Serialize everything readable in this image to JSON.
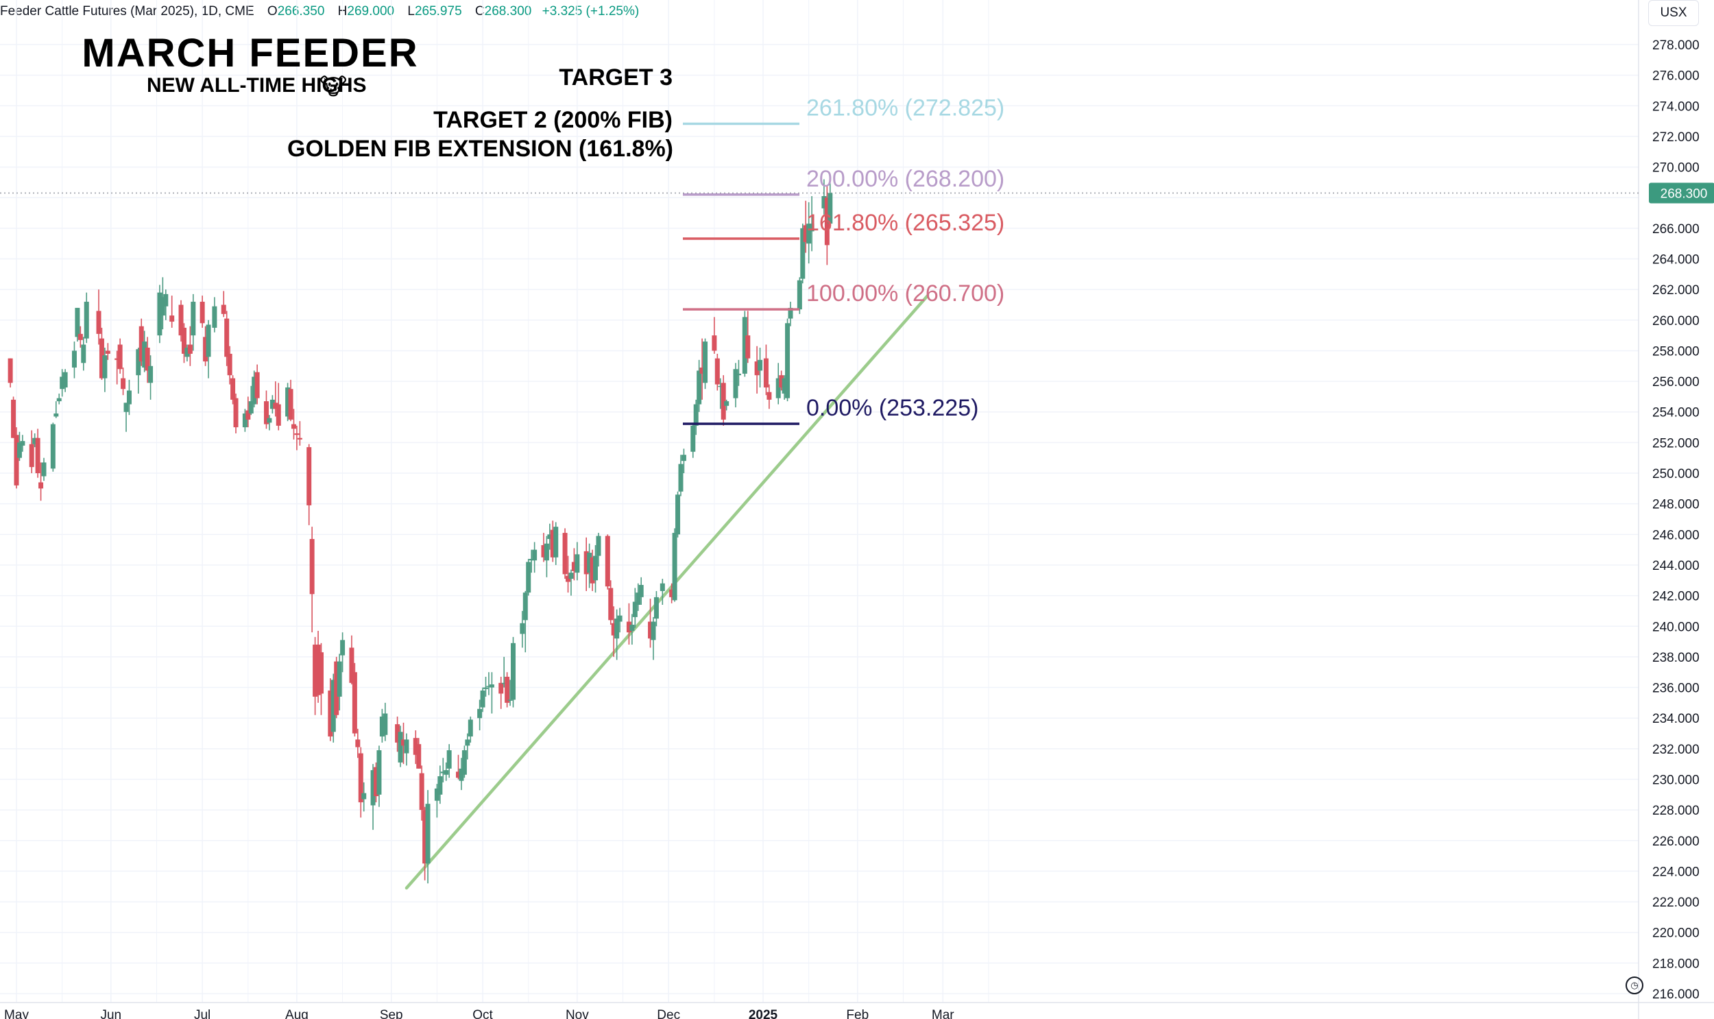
{
  "header": {
    "symbol": "Feeder Cattle Futures (Mar 2025), 1D, CME",
    "open_label": "O",
    "open": "266.350",
    "high_label": "H",
    "high": "269.000",
    "low_label": "L",
    "low": "265.975",
    "close_label": "C",
    "close": "268.300",
    "change": "+3.325 (+1.25%)"
  },
  "currency": "USX",
  "annotations": {
    "title": "MARCH FEEDER",
    "subtitle": "NEW ALL-TIME HIGHS",
    "emoji": "🐮",
    "target3": "TARGET 3",
    "target2": "TARGET 2 (200% FIB)",
    "golden": "GOLDEN FIB EXTENSION (161.8%)"
  },
  "chart_data": {
    "type": "candlestick",
    "y_axis": {
      "ylim": [
        215.5,
        279.5
      ],
      "ticks": [
        "216.000",
        "218.000",
        "220.000",
        "222.000",
        "224.000",
        "226.000",
        "228.000",
        "230.000",
        "232.000",
        "234.000",
        "236.000",
        "238.000",
        "240.000",
        "242.000",
        "244.000",
        "246.000",
        "248.000",
        "250.000",
        "252.000",
        "254.000",
        "256.000",
        "258.000",
        "260.000",
        "262.000",
        "264.000",
        "266.000",
        "268.000",
        "270.000",
        "272.000",
        "274.000",
        "276.000",
        "278.000"
      ],
      "last_price_label": "268.300",
      "last_price": 268.3
    },
    "x_axis": {
      "ticks": [
        "May",
        "Jun",
        "Jul",
        "Aug",
        "Sep",
        "Oct",
        "Nov",
        "Dec",
        "2025",
        "Feb",
        "Mar"
      ]
    },
    "fib_levels": [
      {
        "label": "261.80% (272.825)",
        "value": 272.825,
        "color": "#a7d8e3"
      },
      {
        "label": "200.00% (268.200)",
        "value": 268.2,
        "color": "#b89cc9"
      },
      {
        "label": "161.80% (265.325)",
        "value": 265.325,
        "color": "#d95b62"
      },
      {
        "label": "100.00% (260.700)",
        "value": 260.7,
        "color": "#cf6f86"
      },
      {
        "label": "0.00% (253.225)",
        "value": 253.225,
        "color": "#1f1a63"
      }
    ],
    "trendline": {
      "start": {
        "date": "Sep 06",
        "value": 222.9
      },
      "end": {
        "date": "Feb 24",
        "value": 261.6
      },
      "color": "#9ccc8c"
    },
    "colors": {
      "up": "#4e9b83",
      "down": "#d9525e",
      "grid": "#f0f3fa",
      "dotted": "#9598a1",
      "price_tag": "#3c9a7f"
    },
    "candles": [
      [
        "Apr 29",
        257.5,
        257.5,
        255.6,
        255.9
      ],
      [
        "Apr 30",
        254.8,
        255.0,
        252.3,
        252.3
      ],
      [
        "May 01",
        252.5,
        253.0,
        249.0,
        249.2
      ],
      [
        "May 02",
        251.0,
        252.7,
        250.8,
        252.0
      ],
      [
        "May 03",
        251.8,
        252.5,
        251.4,
        252.1
      ],
      [
        "May 06",
        251.9,
        252.8,
        250.0,
        250.4
      ],
      [
        "May 07",
        251.9,
        252.6,
        251.7,
        252.3
      ],
      [
        "May 08",
        252.3,
        252.9,
        249.7,
        250.0
      ],
      [
        "May 09",
        249.4,
        250.7,
        248.2,
        249.0
      ],
      [
        "May 10",
        249.8,
        251.0,
        249.5,
        250.7
      ],
      [
        "May 13",
        250.3,
        253.3,
        250.1,
        253.2
      ],
      [
        "May 14",
        253.7,
        254.7,
        253.6,
        253.9
      ],
      [
        "May 15",
        254.7,
        255.2,
        254.5,
        254.9
      ],
      [
        "May 16",
        255.5,
        256.8,
        255.0,
        256.3
      ],
      [
        "May 17",
        255.6,
        256.8,
        255.3,
        256.6
      ],
      [
        "May 20",
        256.9,
        258.6,
        256.2,
        258.0
      ],
      [
        "May 21",
        258.9,
        260.8,
        258.6,
        260.8
      ],
      [
        "May 22",
        259.1,
        259.6,
        258.2,
        258.7
      ],
      [
        "May 23",
        257.2,
        258.9,
        256.7,
        258.4
      ],
      [
        "May 24",
        258.8,
        261.8,
        258.5,
        261.2
      ],
      [
        "May 28",
        260.6,
        262.0,
        258.4,
        259.1
      ],
      [
        "May 29",
        258.8,
        259.5,
        256.1,
        256.2
      ],
      [
        "May 30",
        256.2,
        258.2,
        255.3,
        257.7
      ],
      [
        "May 31",
        258.0,
        258.5,
        257.4,
        257.8
      ],
      [
        "Jun 03",
        257.5,
        258.0,
        255.8,
        257.4
      ],
      [
        "Jun 04",
        258.4,
        258.8,
        256.5,
        256.8
      ],
      [
        "Jun 05",
        256.2,
        256.9,
        255.1,
        255.5
      ],
      [
        "Jun 06",
        254.0,
        254.6,
        252.7,
        254.6
      ],
      [
        "Jun 07",
        254.5,
        256.1,
        253.8,
        255.4
      ],
      [
        "Jun 10",
        256.4,
        258.2,
        255.2,
        258.1
      ],
      [
        "Jun 11",
        259.6,
        260.1,
        257.0,
        257.3
      ],
      [
        "Jun 12",
        256.9,
        259.3,
        256.6,
        258.6
      ],
      [
        "Jun 13",
        258.2,
        258.9,
        255.9,
        256.7
      ],
      [
        "Jun 14",
        255.9,
        257.7,
        254.8,
        257.0
      ],
      [
        "Jun 17",
        259.0,
        262.3,
        258.5,
        261.8
      ],
      [
        "Jun 18",
        260.3,
        262.8,
        259.4,
        261.5
      ],
      [
        "Jun 19",
        260.9,
        262.0,
        260.0,
        261.7
      ],
      [
        "Jun 21",
        260.3,
        261.6,
        259.5,
        259.9
      ],
      [
        "Jun 24",
        261.0,
        261.3,
        258.6,
        259.0
      ],
      [
        "Jun 25",
        259.5,
        259.8,
        257.2,
        257.8
      ],
      [
        "Jun 26",
        257.6,
        258.4,
        257.3,
        258.2
      ],
      [
        "Jun 27",
        258.4,
        259.6,
        257.0,
        257.8
      ],
      [
        "Jun 28",
        259.0,
        261.7,
        258.0,
        261.2
      ],
      [
        "Jul 01",
        261.2,
        261.6,
        259.5,
        259.8
      ],
      [
        "Jul 02",
        258.9,
        259.6,
        257.0,
        257.3
      ],
      [
        "Jul 03",
        257.6,
        260.0,
        256.2,
        259.7
      ],
      [
        "Jul 05",
        259.5,
        261.5,
        259.2,
        260.9
      ],
      [
        "Jul 08",
        261.0,
        261.9,
        260.2,
        260.4
      ],
      [
        "Jul 09",
        260.1,
        260.6,
        257.0,
        257.6
      ],
      [
        "Jul 10",
        257.8,
        258.3,
        255.8,
        256.4
      ],
      [
        "Jul 11",
        256.2,
        256.4,
        254.5,
        254.8
      ],
      [
        "Jul 12",
        254.9,
        255.2,
        252.6,
        253.0
      ],
      [
        "Jul 15",
        253.0,
        254.2,
        252.7,
        253.9
      ],
      [
        "Jul 16",
        254.1,
        255.0,
        253.0,
        253.5
      ],
      [
        "Jul 17",
        253.9,
        255.7,
        253.8,
        254.7
      ],
      [
        "Jul 18",
        254.5,
        256.7,
        254.3,
        256.3
      ],
      [
        "Jul 19",
        256.6,
        257.1,
        254.5,
        254.9
      ],
      [
        "Jul 22",
        254.7,
        255.4,
        252.9,
        253.2
      ],
      [
        "Jul 23",
        253.3,
        253.8,
        252.8,
        253.6
      ],
      [
        "Jul 24",
        254.2,
        255.1,
        253.9,
        254.8
      ],
      [
        "Jul 25",
        254.6,
        256.0,
        253.7,
        254.2
      ],
      [
        "Jul 26",
        254.5,
        255.9,
        252.8,
        253.1
      ],
      [
        "Jul 29",
        253.7,
        255.9,
        253.4,
        255.6
      ],
      [
        "Jul 30",
        255.5,
        256.1,
        253.4,
        253.5
      ],
      [
        "Jul 31",
        253.2,
        254.2,
        252.2,
        252.9
      ],
      [
        "Aug 01",
        252.6,
        253.1,
        251.5,
        252.5
      ],
      [
        "Aug 02",
        252.3,
        253.4,
        251.8,
        252.2
      ],
      [
        "Aug 05",
        251.7,
        251.9,
        246.6,
        247.9
      ],
      [
        "Aug 06",
        245.7,
        246.5,
        239.6,
        242.1
      ],
      [
        "Aug 07",
        238.8,
        239.3,
        234.2,
        235.4
      ],
      [
        "Aug 08",
        238.8,
        239.7,
        235.0,
        235.5
      ],
      [
        "Aug 09",
        238.3,
        238.9,
        234.2,
        235.6
      ],
      [
        "Aug 12",
        235.8,
        236.6,
        232.5,
        232.8
      ],
      [
        "Aug 13",
        233.1,
        236.9,
        232.4,
        236.5
      ],
      [
        "Aug 14",
        237.7,
        238.0,
        234.0,
        234.2
      ],
      [
        "Aug 15",
        235.4,
        238.2,
        234.5,
        237.7
      ],
      [
        "Aug 16",
        238.1,
        239.6,
        237.0,
        239.1
      ],
      [
        "Aug 19",
        238.6,
        239.4,
        236.2,
        236.3
      ],
      [
        "Aug 20",
        237.0,
        237.6,
        232.8,
        233.0
      ],
      [
        "Aug 21",
        232.6,
        233.3,
        231.4,
        232.1
      ],
      [
        "Aug 22",
        231.7,
        232.1,
        227.5,
        228.5
      ],
      [
        "Aug 23",
        228.7,
        229.8,
        227.9,
        229.1
      ],
      [
        "Aug 26",
        228.3,
        231.0,
        226.7,
        230.6
      ],
      [
        "Aug 27",
        230.8,
        231.1,
        228.5,
        228.9
      ],
      [
        "Aug 28",
        229.0,
        232.2,
        228.2,
        231.9
      ],
      [
        "Aug 29",
        232.8,
        234.6,
        232.4,
        234.1
      ],
      [
        "Aug 30",
        232.9,
        235.0,
        232.5,
        234.3
      ],
      [
        "Sep 03",
        233.6,
        234.1,
        231.8,
        232.4
      ],
      [
        "Sep 04",
        231.1,
        233.5,
        230.8,
        233.1
      ],
      [
        "Sep 05",
        232.6,
        233.7,
        231.0,
        232.2
      ],
      [
        "Sep 06",
        231.7,
        233.0,
        230.9,
        232.6
      ],
      [
        "Sep 09",
        232.7,
        233.2,
        231.0,
        231.6
      ],
      [
        "Sep 10",
        232.3,
        232.7,
        230.7,
        230.7
      ],
      [
        "Sep 11",
        230.4,
        230.9,
        227.3,
        228.0
      ],
      [
        "Sep 12",
        228.0,
        228.2,
        223.4,
        224.5
      ],
      [
        "Sep 13",
        224.5,
        229.3,
        223.2,
        228.4
      ],
      [
        "Sep 16",
        228.6,
        229.7,
        227.5,
        229.4
      ],
      [
        "Sep 17",
        229.0,
        230.9,
        228.4,
        230.2
      ],
      [
        "Sep 18",
        230.4,
        231.4,
        229.8,
        230.5
      ],
      [
        "Sep 19",
        230.3,
        231.1,
        229.9,
        230.6
      ],
      [
        "Sep 20",
        230.7,
        232.3,
        230.1,
        231.9
      ],
      [
        "Sep 23",
        230.5,
        231.6,
        230.0,
        230.1
      ],
      [
        "Sep 24",
        229.9,
        231.4,
        229.3,
        230.7
      ],
      [
        "Sep 25",
        230.3,
        232.2,
        230.1,
        231.9
      ],
      [
        "Sep 26",
        232.2,
        233.0,
        231.3,
        232.6
      ],
      [
        "Sep 27",
        232.8,
        234.1,
        232.4,
        233.9
      ],
      [
        "Sep 30",
        234.0,
        235.2,
        233.2,
        234.6
      ],
      [
        "Oct 01",
        234.7,
        236.0,
        234.4,
        235.8
      ],
      [
        "Oct 02",
        235.9,
        236.7,
        235.4,
        236.0
      ],
      [
        "Oct 03",
        236.1,
        237.0,
        235.5,
        236.1
      ],
      [
        "Oct 04",
        236.0,
        237.0,
        234.3,
        236.2
      ],
      [
        "Oct 07",
        236.3,
        236.7,
        234.6,
        235.6
      ],
      [
        "Oct 08",
        236.3,
        238.0,
        236.0,
        236.3
      ],
      [
        "Oct 09",
        236.7,
        237.0,
        234.7,
        235.0
      ],
      [
        "Oct 10",
        235.2,
        236.5,
        234.8,
        235.2
      ],
      [
        "Oct 11",
        235.2,
        239.3,
        234.7,
        238.9
      ],
      [
        "Oct 14",
        239.5,
        241.0,
        238.6,
        240.2
      ],
      [
        "Oct 15",
        240.4,
        242.3,
        238.3,
        242.2
      ],
      [
        "Oct 16",
        242.2,
        244.4,
        242.0,
        244.2
      ],
      [
        "Oct 17",
        244.3,
        245.0,
        243.5,
        244.4
      ],
      [
        "Oct 18",
        244.3,
        245.5,
        243.5,
        245.0
      ],
      [
        "Oct 21",
        245.3,
        246.1,
        244.2,
        244.5
      ],
      [
        "Oct 22",
        244.3,
        245.9,
        243.2,
        245.4
      ],
      [
        "Oct 23",
        245.7,
        246.7,
        245.0,
        246.0
      ],
      [
        "Oct 24",
        246.3,
        246.9,
        244.2,
        244.5
      ],
      [
        "Oct 25",
        244.5,
        246.8,
        244.0,
        246.5
      ],
      [
        "Oct 28",
        246.1,
        246.4,
        243.1,
        243.4
      ],
      [
        "Oct 29",
        243.3,
        244.6,
        242.2,
        242.9
      ],
      [
        "Oct 30",
        243.1,
        243.7,
        242.0,
        243.5
      ],
      [
        "Oct 31",
        244.2,
        245.1,
        243.0,
        243.6
      ],
      [
        "Nov 01",
        243.5,
        245.5,
        243.0,
        244.7
      ],
      [
        "Nov 04",
        244.9,
        245.8,
        242.3,
        243.4
      ],
      [
        "Nov 05",
        243.5,
        245.4,
        242.5,
        244.8
      ],
      [
        "Nov 06",
        244.5,
        245.0,
        242.3,
        242.8
      ],
      [
        "Nov 07",
        243.0,
        245.3,
        242.2,
        244.6
      ],
      [
        "Nov 08",
        244.6,
        246.1,
        243.9,
        245.9
      ],
      [
        "Nov 11",
        245.9,
        246.0,
        242.4,
        242.6
      ],
      [
        "Nov 12",
        242.5,
        243.0,
        240.1,
        240.4
      ],
      [
        "Nov 13",
        240.2,
        241.3,
        238.0,
        239.4
      ],
      [
        "Nov 14",
        239.2,
        241.1,
        237.8,
        240.5
      ],
      [
        "Nov 15",
        240.3,
        241.2,
        239.6,
        240.7
      ],
      [
        "Nov 18",
        240.3,
        241.5,
        238.8,
        239.6
      ],
      [
        "Nov 19",
        239.7,
        240.8,
        238.8,
        240.1
      ],
      [
        "Nov 20",
        240.6,
        242.5,
        239.9,
        241.6
      ],
      [
        "Nov 21",
        241.4,
        242.8,
        241.0,
        242.2
      ],
      [
        "Nov 22",
        241.9,
        243.2,
        241.4,
        242.7
      ],
      [
        "Nov 25",
        240.3,
        241.8,
        238.6,
        239.2
      ],
      [
        "Nov 26",
        239.1,
        240.6,
        237.8,
        240.3
      ],
      [
        "Nov 27",
        240.5,
        242.3,
        240.0,
        241.9
      ],
      [
        "Nov 29",
        242.3,
        243.1,
        241.4,
        242.8
      ],
      [
        "Dec 02",
        242.4,
        242.8,
        241.5,
        241.9
      ],
      [
        "Dec 03",
        241.7,
        246.4,
        241.6,
        246.1
      ],
      [
        "Dec 04",
        246.0,
        248.8,
        245.8,
        248.6
      ],
      [
        "Dec 05",
        248.8,
        251.2,
        248.5,
        250.6
      ],
      [
        "Dec 06",
        250.8,
        251.6,
        250.0,
        251.2
      ],
      [
        "Dec 09",
        251.4,
        253.3,
        251.0,
        253.1
      ],
      [
        "Dec 10",
        253.1,
        254.8,
        252.5,
        254.5
      ],
      [
        "Dec 11",
        254.5,
        257.4,
        254.0,
        256.7
      ],
      [
        "Dec 12",
        256.9,
        258.8,
        254.8,
        256.5
      ],
      [
        "Dec 13",
        255.9,
        258.8,
        255.5,
        258.6
      ],
      [
        "Dec 16",
        259.0,
        260.2,
        257.8,
        258.0
      ],
      [
        "Dec 17",
        257.5,
        257.8,
        255.4,
        255.8
      ],
      [
        "Dec 18",
        255.7,
        256.2,
        254.2,
        255.7
      ],
      [
        "Dec 19",
        255.9,
        256.4,
        253.1,
        253.5
      ],
      [
        "Dec 20",
        254.4,
        254.8,
        254.1,
        254.7
      ],
      [
        "Dec 23",
        254.9,
        257.2,
        254.3,
        256.8
      ],
      [
        "Dec 24",
        256.4,
        257.4,
        255.7,
        256.5
      ],
      [
        "Dec 26",
        256.5,
        260.6,
        256.3,
        260.2
      ],
      [
        "Dec 27",
        259.0,
        260.6,
        257.2,
        257.5
      ],
      [
        "Dec 30",
        257.3,
        258.3,
        255.2,
        256.4
      ],
      [
        "Dec 31",
        256.7,
        258.2,
        255.6,
        257.4
      ],
      [
        "Jan 02",
        257.5,
        258.4,
        255.1,
        255.6
      ],
      [
        "Jan 03",
        255.3,
        255.8,
        254.2,
        254.8
      ],
      [
        "Jan 06",
        254.9,
        257.2,
        254.5,
        256.2
      ],
      [
        "Jan 07",
        256.4,
        256.7,
        255.4,
        255.6
      ],
      [
        "Jan 08",
        255.2,
        256.4,
        254.8,
        256.2
      ],
      [
        "Jan 09",
        254.9,
        260.1,
        254.7,
        259.8
      ],
      [
        "Jan 10",
        260.1,
        261.2,
        259.6,
        260.8
      ],
      [
        "Jan 13",
        260.7,
        262.8,
        260.4,
        262.6
      ],
      [
        "Jan 14",
        262.7,
        266.3,
        262.4,
        266.0
      ],
      [
        "Jan 15",
        266.2,
        267.8,
        264.4,
        265.1
      ],
      [
        "Jan 16",
        265.0,
        267.7,
        263.7,
        266.3
      ],
      [
        "Jan 17",
        265.8,
        268.1,
        264.5,
        266.3
      ],
      [
        "Jan 21",
        267.3,
        269.2,
        266.9,
        268.1
      ],
      [
        "Jan 22",
        268.0,
        268.8,
        263.6,
        264.9
      ],
      [
        "Jan 23",
        266.3,
        269.0,
        266.0,
        268.3
      ]
    ]
  }
}
